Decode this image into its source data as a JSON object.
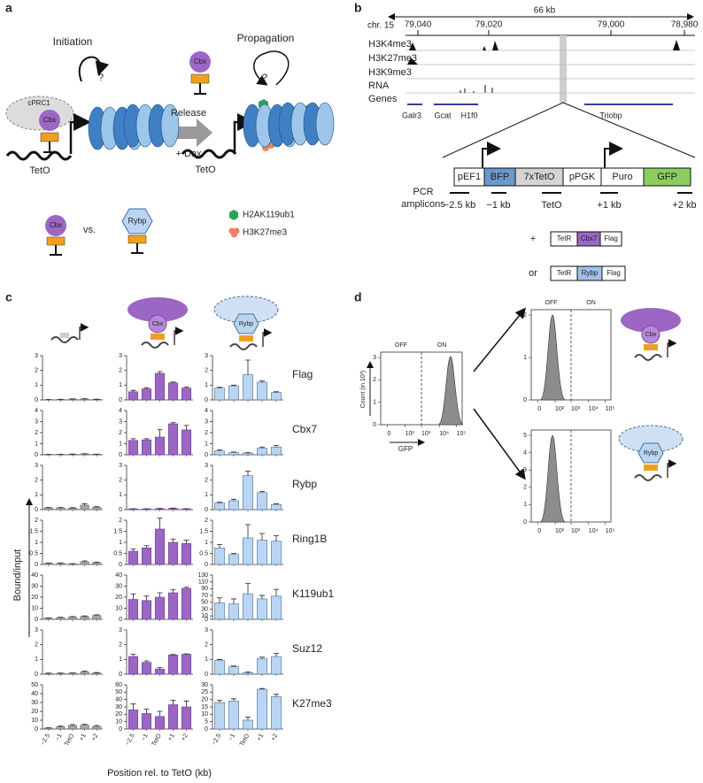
{
  "panel_a": {
    "label": "a",
    "initiation": "Initiation",
    "q1": "?",
    "cprc1": "cPRC1",
    "cbx": "Cbx",
    "teto": "TetO",
    "release": "Release",
    "dox": "+ Dox",
    "propagation": "Propagation",
    "q2": "?",
    "cbx_free": "Cbx",
    "teto2": "TetO",
    "cbx_vs": "Cbx",
    "vs": "vs.",
    "rybp": "Rybp",
    "legend": [
      "H2AK119ub1",
      "H3K27me3"
    ]
  },
  "panel_b": {
    "label": "b",
    "span": "66 kb",
    "chrom": "chr. 15",
    "coords": [
      "79,040",
      "79,020",
      "79,000",
      "78,980"
    ],
    "tracks": [
      "H3K4me3",
      "H3K27me3",
      "H3K9me3",
      "RNA",
      "Genes"
    ],
    "genes": [
      "Galr3",
      "Gcat",
      "H1f0",
      "Triobp"
    ],
    "construct": [
      "pEF1",
      "BFP",
      "7xTetO",
      "pPGK",
      "Puro",
      "GFP"
    ],
    "pcr": [
      "PCR",
      "amplicons"
    ],
    "amplicons": [
      "−2.5 kb",
      "−1 kb",
      "TetO",
      "+1 kb",
      "+2 kb"
    ],
    "plus": "+",
    "fusion1": [
      "TetR",
      "Cbx7",
      "Flag"
    ],
    "or": "or",
    "fusion2": [
      "TetR",
      "Rybp",
      "Flag"
    ]
  },
  "panel_c": {
    "label": "c",
    "icon_labels": [
      "Cbx",
      "Rybp"
    ],
    "rows": [
      "Flag",
      "Cbx7",
      "Rybp",
      "Ring1B",
      "K119ub1",
      "Suz12",
      "K27me3"
    ],
    "categories": [
      "−2.5",
      "−1",
      "TetO",
      "+1",
      "+2"
    ],
    "xlabel": "Position rel. to TetO (kb)",
    "ylabel": "Bound/input"
  },
  "panel_d": {
    "label": "d",
    "gfp": {
      "off": "OFF",
      "on": "ON",
      "ylabel": "Count (in 10³)",
      "xlabel": "GFP",
      "yticks": [
        "0",
        "1",
        "2",
        "3"
      ],
      "xticks": [
        "0",
        "10²",
        "10³",
        "10⁴",
        "10⁵"
      ]
    },
    "top": {
      "off": "OFF",
      "on": "ON",
      "yticks": [
        "0",
        "1",
        "2"
      ],
      "xticks": [
        "0",
        "10²",
        "10³",
        "10⁴",
        "10⁵"
      ]
    },
    "bottom": {
      "yticks": [
        "0",
        "1",
        "2",
        "3",
        "4",
        "5"
      ],
      "xticks": [
        "0",
        "10²",
        "10³",
        "10⁴",
        "10⁵"
      ]
    },
    "icons": [
      "Cbx",
      "Rybp"
    ]
  },
  "chart_data": [
    {
      "type": "bar",
      "color": "#a6a6a6",
      "values": [
        0.02,
        0.03,
        0.05,
        0.06,
        0.04
      ],
      "errors": [
        0.01,
        0.01,
        0.02,
        0.02,
        0.01
      ],
      "ylim": [
        0,
        3
      ],
      "yticks": [
        0,
        1,
        2,
        3
      ]
    },
    {
      "type": "bar",
      "color": "#9b66c4",
      "values": [
        0.55,
        0.75,
        1.8,
        1.15,
        0.8
      ],
      "errors": [
        0.1,
        0.08,
        0.12,
        0.06,
        0.07
      ],
      "ylim": [
        0,
        3
      ],
      "yticks": [
        0,
        1,
        2,
        3
      ]
    },
    {
      "type": "bar",
      "color": "#b9d5f2",
      "values": [
        0.8,
        0.95,
        1.7,
        1.2,
        0.5
      ],
      "errors": [
        0.05,
        0.05,
        1.0,
        0.08,
        0.05
      ],
      "ylim": [
        0,
        3
      ],
      "yticks": [
        0,
        1,
        2,
        3
      ]
    },
    {
      "type": "bar",
      "color": "#a6a6a6",
      "values": [
        0.03,
        0.04,
        0.05,
        0.08,
        0.05
      ],
      "errors": [
        0.01,
        0.01,
        0.02,
        0.02,
        0.01
      ],
      "ylim": [
        0,
        4
      ],
      "yticks": [
        0,
        1,
        2,
        3,
        4
      ]
    },
    {
      "type": "bar",
      "color": "#9b66c4",
      "values": [
        1.3,
        1.35,
        1.6,
        2.8,
        2.25
      ],
      "errors": [
        0.15,
        0.1,
        0.7,
        0.1,
        0.4
      ],
      "ylim": [
        0,
        4
      ],
      "yticks": [
        0,
        1,
        2,
        3,
        4
      ]
    },
    {
      "type": "bar",
      "color": "#b9d5f2",
      "values": [
        0.35,
        0.2,
        0.15,
        0.6,
        0.7
      ],
      "errors": [
        0.1,
        0.05,
        0.05,
        0.1,
        0.15
      ],
      "ylim": [
        0,
        4
      ],
      "yticks": [
        0,
        1,
        2,
        3,
        4
      ]
    },
    {
      "type": "bar",
      "color": "#a6a6a6",
      "values": [
        0.12,
        0.12,
        0.1,
        0.3,
        0.15
      ],
      "errors": [
        0.03,
        0.03,
        0.03,
        0.1,
        0.05
      ],
      "ylim": [
        0,
        3
      ],
      "yticks": [
        0,
        1,
        2,
        3
      ]
    },
    {
      "type": "bar",
      "color": "#9b66c4",
      "values": [
        0.05,
        0.05,
        0.06,
        0.08,
        0.05
      ],
      "errors": [
        0.01,
        0.01,
        0.02,
        0.02,
        0.01
      ],
      "ylim": [
        0,
        3
      ],
      "yticks": [
        0,
        1,
        2,
        3
      ]
    },
    {
      "type": "bar",
      "color": "#b9d5f2",
      "values": [
        0.45,
        0.6,
        2.3,
        1.15,
        0.35
      ],
      "errors": [
        0.05,
        0.1,
        0.3,
        0.08,
        0.05
      ],
      "ylim": [
        0,
        3
      ],
      "yticks": [
        0,
        1,
        2,
        3
      ]
    },
    {
      "type": "bar",
      "color": "#a6a6a6",
      "values": [
        0.05,
        0.05,
        0.03,
        0.12,
        0.08
      ],
      "errors": [
        0.02,
        0.02,
        0.01,
        0.04,
        0.03
      ],
      "ylim": [
        0,
        2
      ],
      "yticks": [
        0,
        0.5,
        1,
        1.5,
        2
      ]
    },
    {
      "type": "bar",
      "color": "#9b66c4",
      "values": [
        0.6,
        0.75,
        1.6,
        1.0,
        0.95
      ],
      "errors": [
        0.1,
        0.1,
        0.5,
        0.15,
        0.15
      ],
      "ylim": [
        0,
        2
      ],
      "yticks": [
        0,
        0.5,
        1,
        1.5,
        2
      ]
    },
    {
      "type": "bar",
      "color": "#b9d5f2",
      "values": [
        0.75,
        0.45,
        1.2,
        1.1,
        1.05
      ],
      "errors": [
        0.15,
        0.05,
        0.6,
        0.3,
        0.25
      ],
      "ylim": [
        0,
        2
      ],
      "yticks": [
        0,
        0.5,
        1,
        1.5,
        2
      ]
    },
    {
      "type": "bar",
      "color": "#a6a6a6",
      "values": [
        1,
        1.5,
        2,
        2.5,
        3.5
      ],
      "errors": [
        0.3,
        0.4,
        0.5,
        0.6,
        0.6
      ],
      "ylim": [
        0,
        40
      ],
      "yticks": [
        0,
        10,
        20,
        30,
        40
      ]
    },
    {
      "type": "bar",
      "color": "#9b66c4",
      "values": [
        18,
        17,
        20,
        24,
        28
      ],
      "errors": [
        5,
        4,
        4,
        3,
        1
      ],
      "ylim": [
        0,
        40
      ],
      "yticks": [
        0,
        10,
        20,
        30,
        40
      ]
    },
    {
      "type": "bar",
      "color": "#b9d5f2",
      "values": [
        48,
        45,
        75,
        60,
        68
      ],
      "errors": [
        15,
        15,
        30,
        10,
        20
      ],
      "ylim": [
        0,
        130
      ],
      "yticks": [
        0,
        10,
        30,
        50,
        70,
        90,
        110,
        130
      ]
    },
    {
      "type": "bar",
      "color": "#a6a6a6",
      "values": [
        0.05,
        0.06,
        0.07,
        0.15,
        0.08
      ],
      "errors": [
        0.02,
        0.02,
        0.02,
        0.05,
        0.03
      ],
      "ylim": [
        0,
        3
      ],
      "yticks": [
        0,
        1,
        2,
        3
      ]
    },
    {
      "type": "bar",
      "color": "#9b66c4",
      "values": [
        1.2,
        0.8,
        0.35,
        1.3,
        1.35
      ],
      "errors": [
        0.15,
        0.1,
        0.1,
        0.03,
        0.03
      ],
      "ylim": [
        0,
        3
      ],
      "yticks": [
        0,
        1,
        2,
        3
      ]
    },
    {
      "type": "bar",
      "color": "#b9d5f2",
      "values": [
        0.95,
        0.5,
        0.1,
        1.05,
        1.2
      ],
      "errors": [
        0.05,
        0.05,
        0.05,
        0.1,
        0.2
      ],
      "ylim": [
        0,
        3
      ],
      "yticks": [
        0,
        1,
        2,
        3
      ]
    },
    {
      "type": "bar",
      "color": "#a6a6a6",
      "values": [
        1,
        2.5,
        4,
        4.5,
        3
      ],
      "errors": [
        0.5,
        1,
        1,
        1,
        1
      ],
      "ylim": [
        0,
        50
      ],
      "yticks": [
        0,
        10,
        20,
        30,
        40,
        50
      ]
    },
    {
      "type": "bar",
      "color": "#9b66c4",
      "values": [
        26,
        21,
        17,
        33,
        30
      ],
      "errors": [
        8,
        6,
        7,
        6,
        8
      ],
      "ylim": [
        0,
        60
      ],
      "yticks": [
        0,
        10,
        20,
        30,
        40,
        50,
        60
      ]
    },
    {
      "type": "bar",
      "color": "#b9d5f2",
      "values": [
        18,
        19,
        6,
        27,
        22
      ],
      "errors": [
        1.5,
        1.5,
        2,
        0.5,
        1.5
      ],
      "ylim": [
        0,
        30
      ],
      "yticks": [
        0,
        5,
        10,
        15,
        20,
        25,
        30
      ]
    }
  ]
}
